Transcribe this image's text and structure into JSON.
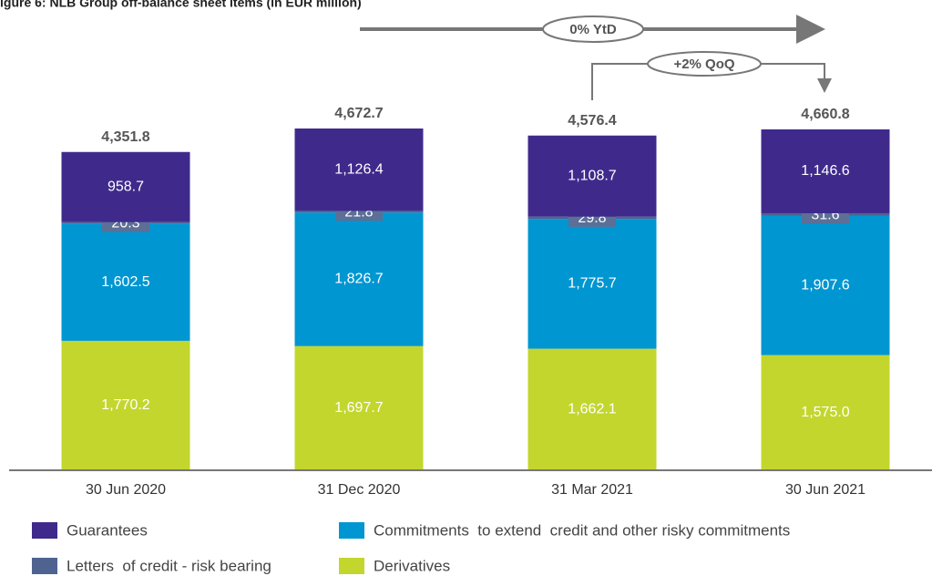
{
  "chart_data": {
    "type": "stacked_bar",
    "title": "igure 6: NLB Group off-balance sheet items (in EUR million)",
    "categories": [
      "30 Jun 2020",
      "31 Dec 2020",
      "31 Mar 2021",
      "30 Jun 2021"
    ],
    "series": [
      {
        "name": "Derivatives",
        "color": "#c3d62e",
        "values": [
          1770.2,
          1697.7,
          1662.1,
          1575.0
        ],
        "value_labels": [
          "1,770.2",
          "1,697.7",
          "1,662.1",
          "1,575.0"
        ]
      },
      {
        "name": "Commitments  to extend  credit and other risky commitments",
        "color": "#0096d1",
        "values": [
          1602.5,
          1826.7,
          1775.7,
          1907.6
        ],
        "value_labels": [
          "1,602.5",
          "1,826.7",
          "1,775.7",
          "1,907.6"
        ]
      },
      {
        "name": "Letters  of credit - risk bearing",
        "color": "#4f6390",
        "values": [
          20.3,
          21.8,
          29.8,
          31.6
        ]
      },
      {
        "name": "Guarantees",
        "color": "#3f2a8c",
        "values": [
          958.7,
          1126.4,
          1108.7,
          1146.6
        ],
        "value_labels": [
          "958.7",
          "1,126.4",
          "1,108.7",
          "1,146.6"
        ]
      }
    ],
    "totals": [
      4351.8,
      4672.7,
      4576.4,
      4660.8
    ],
    "total_labels": [
      "4,351.8",
      "4,672.7",
      "4,576.4",
      "4,660.8"
    ],
    "annotations": [
      "0% YtD",
      "+2% QoQ"
    ]
  }
}
